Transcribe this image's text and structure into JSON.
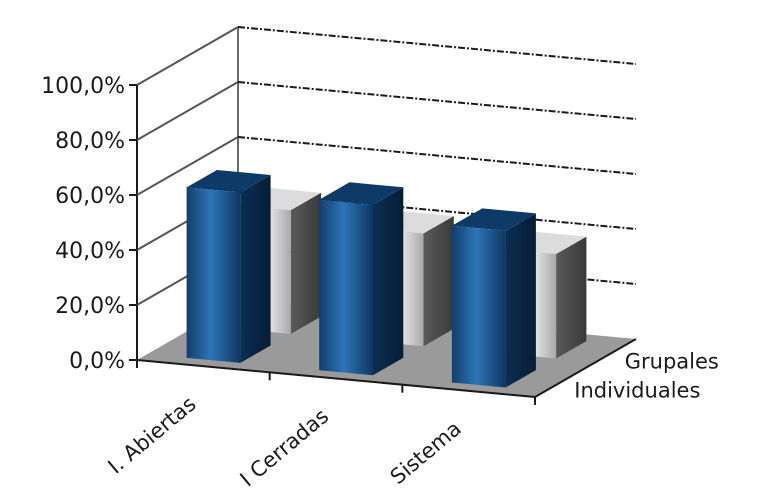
{
  "chart_data": {
    "type": "bar",
    "subtype": "3d-clustered-column",
    "categories": [
      "I. Abiertas",
      "I Cerradas",
      "Sistema"
    ],
    "series": [
      {
        "name": "Individuales",
        "values": [
          62.0,
          62.0,
          57.0
        ],
        "color": "#1f5a96"
      },
      {
        "name": "Grupales",
        "values": [
          45.0,
          41.0,
          38.0
        ],
        "color": "#c9c9c9"
      }
    ],
    "y_ticks": [
      "0,0%",
      "20,0%",
      "40,0%",
      "60,0%",
      "80,0%",
      "100,0%"
    ],
    "ylim": [
      0,
      100
    ],
    "grid": true,
    "legend": "depth-axis-labels-right",
    "colors": {
      "floor": "#9a9a9a",
      "gridline": "#1a1a1a",
      "wall": "#ffffff"
    }
  }
}
